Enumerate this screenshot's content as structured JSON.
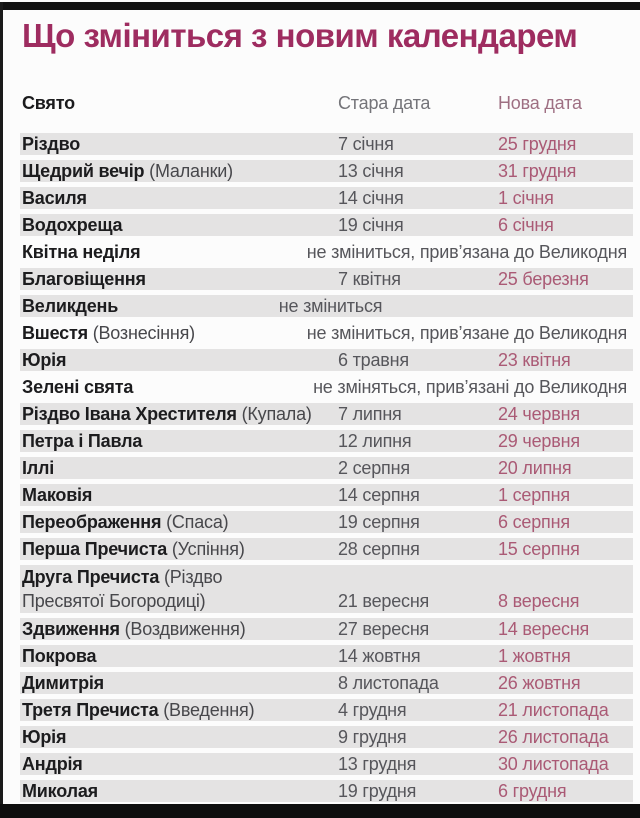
{
  "page": {
    "title": "Що зміниться з новим календарем",
    "colors": {
      "title": "#9e2c60",
      "row_band": "#e4e3e3",
      "old_date_text": "#56565b",
      "new_date_text": "#aa5a75",
      "new_date_header": "#9e6f82",
      "frame": "#121212"
    }
  },
  "chart_data": {
    "type": "table",
    "title": "Що зміниться з новим календарем",
    "columns": [
      "Свято",
      "Стара дата",
      "Нова дата"
    ],
    "rows": [
      {
        "holiday": "Різдво",
        "old": "7 січня",
        "new": "25 грудня"
      },
      {
        "holiday": "Щедрий вечір",
        "note": "(Маланки)",
        "old": "13 січня",
        "new": "31 грудня"
      },
      {
        "holiday": "Василя",
        "old": "14 січня",
        "new": "1 січня"
      },
      {
        "holiday": "Водохреща",
        "old": "19 січня",
        "new": "6 січня"
      },
      {
        "holiday": "Квітна неділя",
        "span": "не зміниться, прив’язана до Великодня",
        "variant": "linked"
      },
      {
        "holiday": "Благовіщення",
        "old": "7 квітня",
        "new": "25 березня"
      },
      {
        "holiday": "Великдень",
        "span": "не зміниться",
        "variant": "nochange"
      },
      {
        "holiday": "Вшестя",
        "note": "(Вознесіння)",
        "span": "не зміниться, прив’язане до Великодня",
        "variant": "linked"
      },
      {
        "holiday": "Юрія",
        "old": "6 травня",
        "new": "23 квітня"
      },
      {
        "holiday": "Зелені свята",
        "span": "не зміняться, прив’язані до Великодня",
        "variant": "linked"
      },
      {
        "holiday": "Різдво Івана Хрестителя",
        "note": "(Купала)",
        "old": "7 липня",
        "new": "24 червня"
      },
      {
        "holiday": "Петра і Павла",
        "old": "12 липня",
        "new": "29 червня"
      },
      {
        "holiday": "Іллі",
        "old": "2 серпня",
        "new": "20 липня"
      },
      {
        "holiday": "Маковія",
        "old": "14 серпня",
        "new": "1 серпня"
      },
      {
        "holiday": "Переображення",
        "note": "(Спаса)",
        "old": "19 серпня",
        "new": "6 серпня"
      },
      {
        "holiday": "Перша Пречиста",
        "note": "(Успіння)",
        "old": "28 серпня",
        "new": "15 серпня"
      },
      {
        "holiday": "Друга Пречиста",
        "note": "(Різдво Пресвятої Богородиці)",
        "old": "21 вересня",
        "new": "8 вересня",
        "variant": "tall"
      },
      {
        "holiday": "Здвиження",
        "note": "(Воздвиження)",
        "old": "27 вересня",
        "new": "14 вересня"
      },
      {
        "holiday": "Покрова",
        "old": "14 жовтня",
        "new": "1 жовтня"
      },
      {
        "holiday": "Димитрія",
        "old": "8 листопада",
        "new": "26 жовтня"
      },
      {
        "holiday": "Третя Пречиста",
        "note": "(Введення)",
        "old": "4 грудня",
        "new": "21 листопада"
      },
      {
        "holiday": "Юрія",
        "old": "9 грудня",
        "new": "26 листопада"
      },
      {
        "holiday": "Андрія",
        "old": "13 грудня",
        "new": "30 листопада"
      },
      {
        "holiday": "Миколая",
        "old": "19 грудня",
        "new": "6 грудня"
      }
    ]
  }
}
